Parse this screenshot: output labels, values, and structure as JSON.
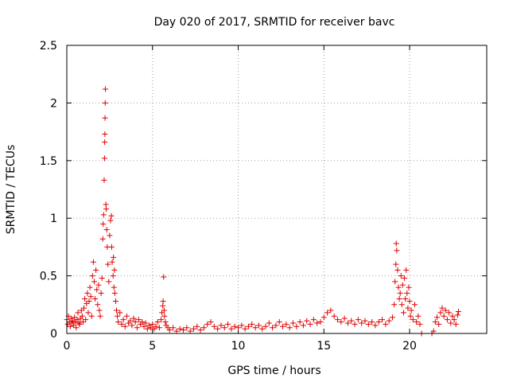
{
  "chart_data": {
    "type": "scatter",
    "title": "Day 020 of 2017, SRMTID for receiver bavc",
    "xlabel": "GPS time / hours",
    "ylabel": "SRMTID / TECUs",
    "xlim": [
      0,
      24.5
    ],
    "ylim": [
      0,
      2.5
    ],
    "xticks": [
      0,
      5,
      10,
      15,
      20
    ],
    "xtick_labels": [
      "0",
      "5",
      "10",
      "15",
      "20"
    ],
    "yticks": [
      0,
      0.5,
      1,
      1.5,
      2,
      2.5
    ],
    "ytick_labels": [
      "0",
      "0.5",
      "1",
      "1.5",
      "2",
      "2.5"
    ],
    "grid": true,
    "marker": "+",
    "series": [
      {
        "name": "SRMTID",
        "color": "#e00000",
        "points": [
          [
            0.0,
            0.12
          ],
          [
            0.05,
            0.08
          ],
          [
            0.1,
            0.15
          ],
          [
            0.15,
            0.1
          ],
          [
            0.2,
            0.06
          ],
          [
            0.25,
            0.13
          ],
          [
            0.3,
            0.09
          ],
          [
            0.35,
            0.11
          ],
          [
            0.4,
            0.07
          ],
          [
            0.45,
            0.14
          ],
          [
            0.5,
            0.1
          ],
          [
            0.55,
            0.05
          ],
          [
            0.6,
            0.12
          ],
          [
            0.65,
            0.18
          ],
          [
            0.7,
            0.09
          ],
          [
            0.75,
            0.08
          ],
          [
            0.8,
            0.13
          ],
          [
            0.85,
            0.2
          ],
          [
            0.9,
            0.15
          ],
          [
            0.95,
            0.1
          ],
          [
            1.0,
            0.22
          ],
          [
            1.05,
            0.3
          ],
          [
            1.1,
            0.12
          ],
          [
            1.15,
            0.26
          ],
          [
            1.2,
            0.35
          ],
          [
            1.25,
            0.18
          ],
          [
            1.3,
            0.28
          ],
          [
            1.35,
            0.4
          ],
          [
            1.4,
            0.32
          ],
          [
            1.45,
            0.15
          ],
          [
            1.5,
            0.5
          ],
          [
            1.55,
            0.62
          ],
          [
            1.6,
            0.45
          ],
          [
            1.65,
            0.3
          ],
          [
            1.7,
            0.55
          ],
          [
            1.75,
            0.38
          ],
          [
            1.8,
            0.25
          ],
          [
            1.85,
            0.42
          ],
          [
            1.9,
            0.2
          ],
          [
            1.95,
            0.15
          ],
          [
            2.0,
            0.35
          ],
          [
            2.05,
            0.48
          ],
          [
            2.1,
            0.82
          ],
          [
            2.12,
            0.95
          ],
          [
            2.15,
            1.03
          ],
          [
            2.18,
            1.33
          ],
          [
            2.2,
            1.52
          ],
          [
            2.21,
            1.66
          ],
          [
            2.22,
            1.73
          ],
          [
            2.23,
            1.87
          ],
          [
            2.24,
            2.0
          ],
          [
            2.25,
            2.12
          ],
          [
            2.28,
            1.12
          ],
          [
            2.3,
            1.08
          ],
          [
            2.33,
            0.9
          ],
          [
            2.36,
            0.75
          ],
          [
            2.4,
            0.6
          ],
          [
            2.45,
            0.45
          ],
          [
            2.5,
            0.85
          ],
          [
            2.55,
            0.98
          ],
          [
            2.6,
            1.02
          ],
          [
            2.62,
            0.75
          ],
          [
            2.65,
            0.62
          ],
          [
            2.7,
            0.5
          ],
          [
            2.72,
            0.66
          ],
          [
            2.75,
            0.4
          ],
          [
            2.78,
            0.55
          ],
          [
            2.8,
            0.35
          ],
          [
            2.85,
            0.28
          ],
          [
            2.9,
            0.2
          ],
          [
            2.95,
            0.15
          ],
          [
            3.0,
            0.1
          ],
          [
            3.1,
            0.18
          ],
          [
            3.2,
            0.08
          ],
          [
            3.3,
            0.12
          ],
          [
            3.4,
            0.06
          ],
          [
            3.5,
            0.15
          ],
          [
            3.6,
            0.09
          ],
          [
            3.7,
            0.11
          ],
          [
            3.8,
            0.07
          ],
          [
            3.9,
            0.13
          ],
          [
            4.0,
            0.1
          ],
          [
            4.1,
            0.05
          ],
          [
            4.2,
            0.12
          ],
          [
            4.3,
            0.08
          ],
          [
            4.4,
            0.1
          ],
          [
            4.5,
            0.06
          ],
          [
            4.6,
            0.09
          ],
          [
            4.7,
            0.04
          ],
          [
            4.8,
            0.07
          ],
          [
            4.9,
            0.05
          ],
          [
            5.0,
            0.08
          ],
          [
            5.1,
            0.04
          ],
          [
            5.2,
            0.06
          ],
          [
            5.3,
            0.1
          ],
          [
            5.4,
            0.05
          ],
          [
            5.5,
            0.12
          ],
          [
            5.55,
            0.18
          ],
          [
            5.6,
            0.24
          ],
          [
            5.62,
            0.28
          ],
          [
            5.65,
            0.49
          ],
          [
            5.68,
            0.2
          ],
          [
            5.7,
            0.15
          ],
          [
            5.75,
            0.1
          ],
          [
            5.8,
            0.07
          ],
          [
            5.9,
            0.05
          ],
          [
            6.0,
            0.03
          ],
          [
            6.2,
            0.05
          ],
          [
            6.4,
            0.02
          ],
          [
            6.6,
            0.04
          ],
          [
            6.8,
            0.03
          ],
          [
            7.0,
            0.05
          ],
          [
            7.2,
            0.02
          ],
          [
            7.4,
            0.04
          ],
          [
            7.6,
            0.06
          ],
          [
            7.8,
            0.03
          ],
          [
            8.0,
            0.05
          ],
          [
            8.2,
            0.08
          ],
          [
            8.4,
            0.1
          ],
          [
            8.6,
            0.06
          ],
          [
            8.8,
            0.04
          ],
          [
            9.0,
            0.07
          ],
          [
            9.2,
            0.05
          ],
          [
            9.4,
            0.08
          ],
          [
            9.6,
            0.04
          ],
          [
            9.8,
            0.06
          ],
          [
            10.0,
            0.05
          ],
          [
            10.2,
            0.07
          ],
          [
            10.4,
            0.04
          ],
          [
            10.6,
            0.06
          ],
          [
            10.8,
            0.08
          ],
          [
            11.0,
            0.05
          ],
          [
            11.2,
            0.07
          ],
          [
            11.4,
            0.04
          ],
          [
            11.6,
            0.06
          ],
          [
            11.8,
            0.09
          ],
          [
            12.0,
            0.05
          ],
          [
            12.2,
            0.07
          ],
          [
            12.4,
            0.1
          ],
          [
            12.6,
            0.06
          ],
          [
            12.8,
            0.08
          ],
          [
            13.0,
            0.05
          ],
          [
            13.2,
            0.09
          ],
          [
            13.4,
            0.06
          ],
          [
            13.6,
            0.1
          ],
          [
            13.8,
            0.07
          ],
          [
            14.0,
            0.11
          ],
          [
            14.2,
            0.08
          ],
          [
            14.4,
            0.12
          ],
          [
            14.6,
            0.09
          ],
          [
            14.8,
            0.1
          ],
          [
            15.0,
            0.14
          ],
          [
            15.2,
            0.18
          ],
          [
            15.4,
            0.2
          ],
          [
            15.6,
            0.15
          ],
          [
            15.8,
            0.12
          ],
          [
            16.0,
            0.1
          ],
          [
            16.2,
            0.13
          ],
          [
            16.4,
            0.09
          ],
          [
            16.6,
            0.11
          ],
          [
            16.8,
            0.08
          ],
          [
            17.0,
            0.12
          ],
          [
            17.2,
            0.09
          ],
          [
            17.4,
            0.11
          ],
          [
            17.6,
            0.08
          ],
          [
            17.8,
            0.1
          ],
          [
            18.0,
            0.07
          ],
          [
            18.2,
            0.1
          ],
          [
            18.4,
            0.12
          ],
          [
            18.6,
            0.08
          ],
          [
            18.8,
            0.11
          ],
          [
            19.0,
            0.14
          ],
          [
            19.1,
            0.25
          ],
          [
            19.15,
            0.45
          ],
          [
            19.2,
            0.6
          ],
          [
            19.22,
            0.78
          ],
          [
            19.25,
            0.72
          ],
          [
            19.3,
            0.55
          ],
          [
            19.35,
            0.4
          ],
          [
            19.4,
            0.3
          ],
          [
            19.45,
            0.35
          ],
          [
            19.5,
            0.5
          ],
          [
            19.55,
            0.25
          ],
          [
            19.6,
            0.42
          ],
          [
            19.65,
            0.18
          ],
          [
            19.7,
            0.48
          ],
          [
            19.75,
            0.3
          ],
          [
            19.8,
            0.55
          ],
          [
            19.85,
            0.35
          ],
          [
            19.9,
            0.22
          ],
          [
            19.95,
            0.4
          ],
          [
            20.0,
            0.28
          ],
          [
            20.05,
            0.15
          ],
          [
            20.1,
            0.2
          ],
          [
            20.2,
            0.12
          ],
          [
            20.3,
            0.25
          ],
          [
            20.4,
            0.1
          ],
          [
            20.5,
            0.15
          ],
          [
            20.6,
            0.08
          ],
          [
            20.7,
            0.0
          ],
          [
            21.3,
            0.0
          ],
          [
            21.4,
            0.02
          ],
          [
            21.5,
            0.1
          ],
          [
            21.6,
            0.14
          ],
          [
            21.7,
            0.08
          ],
          [
            21.8,
            0.18
          ],
          [
            21.9,
            0.22
          ],
          [
            22.0,
            0.15
          ],
          [
            22.1,
            0.2
          ],
          [
            22.2,
            0.12
          ],
          [
            22.3,
            0.18
          ],
          [
            22.4,
            0.09
          ],
          [
            22.5,
            0.15
          ],
          [
            22.6,
            0.12
          ],
          [
            22.7,
            0.08
          ],
          [
            22.8,
            0.16
          ],
          [
            22.85,
            0.19
          ]
        ]
      }
    ]
  }
}
